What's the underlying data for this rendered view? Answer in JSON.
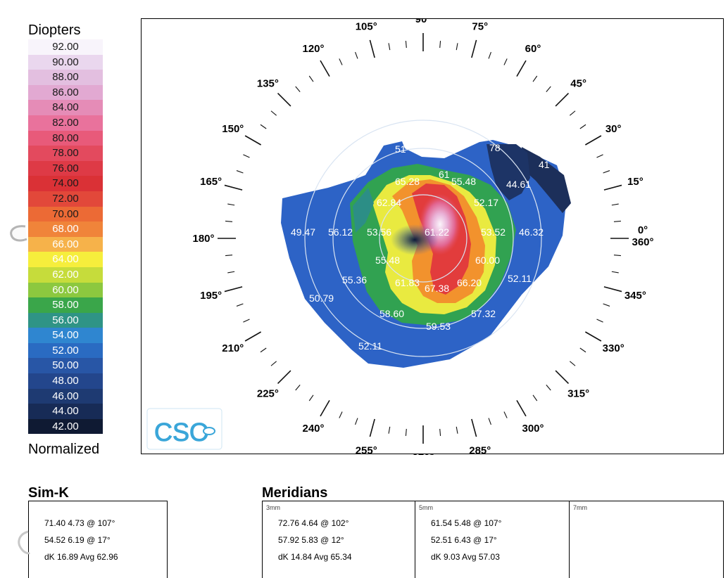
{
  "legend": {
    "title": "Diopters",
    "footer": "Normalized",
    "rows": [
      {
        "label": "92.00",
        "color": "#f8f4fb",
        "text": "#1a1a1a"
      },
      {
        "label": "90.00",
        "color": "#ead7ee",
        "text": "#1a1a1a"
      },
      {
        "label": "88.00",
        "color": "#e3bfe0",
        "text": "#1a1a1a"
      },
      {
        "label": "86.00",
        "color": "#e2a9d2",
        "text": "#1a1a1a"
      },
      {
        "label": "84.00",
        "color": "#e58cb7",
        "text": "#1a1a1a"
      },
      {
        "label": "82.00",
        "color": "#e9729c",
        "text": "#1a1a1a"
      },
      {
        "label": "80.00",
        "color": "#e85a7a",
        "text": "#1a1a1a"
      },
      {
        "label": "78.00",
        "color": "#e34a5e",
        "text": "#1a1a1a"
      },
      {
        "label": "76.00",
        "color": "#de3a46",
        "text": "#1a1a1a"
      },
      {
        "label": "74.00",
        "color": "#da3136",
        "text": "#1a1a1a"
      },
      {
        "label": "72.00",
        "color": "#e2483a",
        "text": "#1a1a1a"
      },
      {
        "label": "70.00",
        "color": "#ec6a35",
        "text": "#1a1a1a"
      },
      {
        "label": "68.00",
        "color": "#f0843a",
        "text": "#ffffff"
      },
      {
        "label": "66.00",
        "color": "#f6b24a",
        "text": "#ffffff"
      },
      {
        "label": "64.00",
        "color": "#f6ee3c",
        "text": "#ffffff"
      },
      {
        "label": "62.00",
        "color": "#c6dc3b",
        "text": "#ffffff"
      },
      {
        "label": "60.00",
        "color": "#8cc83f",
        "text": "#ffffff"
      },
      {
        "label": "58.00",
        "color": "#3aa64a",
        "text": "#ffffff"
      },
      {
        "label": "56.00",
        "color": "#2f9486",
        "text": "#ffffff"
      },
      {
        "label": "54.00",
        "color": "#2f86d0",
        "text": "#ffffff"
      },
      {
        "label": "52.00",
        "color": "#2a6bc2",
        "text": "#ffffff"
      },
      {
        "label": "50.00",
        "color": "#2856a6",
        "text": "#ffffff"
      },
      {
        "label": "48.00",
        "color": "#23468c",
        "text": "#ffffff"
      },
      {
        "label": "46.00",
        "color": "#1e3a72",
        "text": "#ffffff"
      },
      {
        "label": "44.00",
        "color": "#172b56",
        "text": "#ffffff"
      },
      {
        "label": "42.00",
        "color": "#0f1a33",
        "text": "#ffffff"
      }
    ]
  },
  "map": {
    "angle_labels": [
      "0°",
      "15°",
      "30°",
      "45°",
      "60°",
      "75°",
      "90°",
      "105°",
      "120°",
      "135°",
      "150°",
      "165°",
      "180°",
      "195°",
      "210°",
      "225°",
      "240°",
      "255°",
      "270°",
      "285°",
      "300°",
      "315°",
      "330°",
      "345°",
      "360°"
    ],
    "values": [
      "49.47",
      "56.12",
      "53.56",
      "61.22",
      "53.52",
      "46.32",
      "65.28",
      "61",
      "55.48",
      "44.61",
      "62.84",
      "52.17",
      "78",
      "41",
      "55.48",
      "60.00",
      "55.36",
      "61.83",
      "67.38",
      "66.20",
      "52.11",
      "50.79",
      "58.60",
      "57.32",
      "59.53",
      "52.11",
      "51"
    ],
    "logo_text": "CSO"
  },
  "simk": {
    "title": "Sim-K",
    "lines": [
      "71.40 4.73 @ 107°",
      "54.52 6.19 @ 17°",
      "dK 16.89 Avg 62.96"
    ]
  },
  "meridians": {
    "title": "Meridians",
    "panels": [
      {
        "label": "3mm",
        "lines": [
          "72.76 4.64 @ 102°",
          "57.92 5.83 @ 12°",
          "dK 14.84 Avg 65.34"
        ]
      },
      {
        "label": "5mm",
        "lines": [
          "61.54 5.48 @ 107°",
          "52.51 6.43 @ 17°",
          "dK 9.03 Avg 57.03"
        ]
      },
      {
        "label": "7mm",
        "lines": []
      }
    ]
  }
}
